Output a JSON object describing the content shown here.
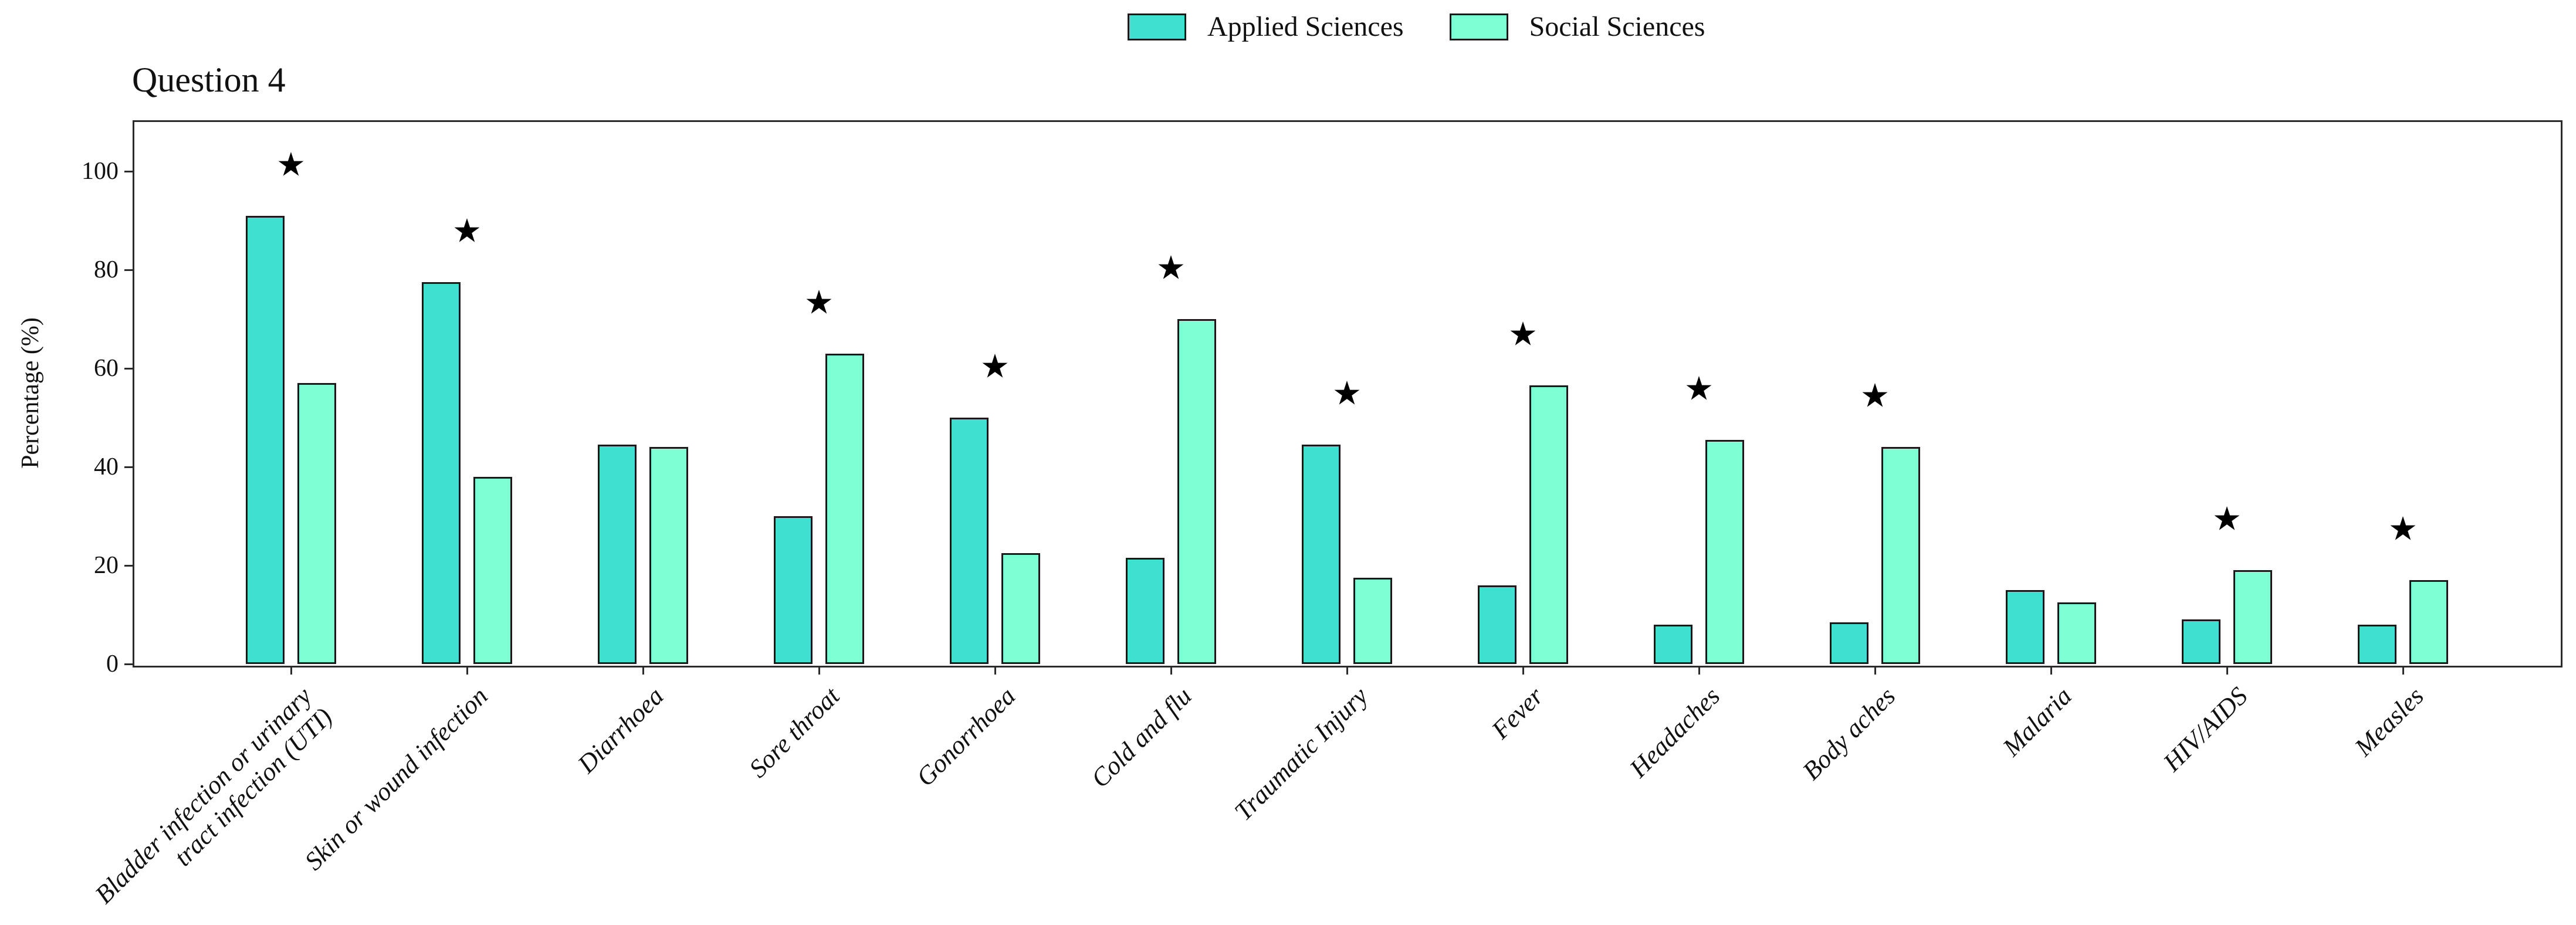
{
  "title": "Question 4",
  "legend": {
    "items": [
      {
        "label": "Applied Sciences",
        "color": "#40E0D0"
      },
      {
        "label": "Social Sciences",
        "color": "#7FFFD4"
      }
    ]
  },
  "y_axis": {
    "label": "Percentage (%)",
    "tick_labels": [
      "0",
      "20",
      "40",
      "60",
      "80",
      "100"
    ]
  },
  "chart_data": {
    "type": "bar",
    "title": "Question 4",
    "xlabel": "",
    "ylabel": "Percentage (%)",
    "ylim": [
      0,
      110
    ],
    "yticks": [
      0,
      20,
      40,
      60,
      80,
      100
    ],
    "grid": false,
    "legend_position": "top-center-outside",
    "bar_edge_color": "#1a1a1a",
    "axis_color": "#2b2b2b",
    "categories": [
      "Bladder infection or urinary\ntract infection (UTI)",
      "Skin or wound infection",
      "Diarrhoea",
      "Sore throat",
      "Gonorrhoea",
      "Cold and flu",
      "Traumatic Injury",
      "Fever",
      "Headaches",
      "Body aches",
      "Malaria",
      "HIV/AIDS",
      "Measles"
    ],
    "series": [
      {
        "name": "Applied Sciences",
        "color": "#40E0D0",
        "values": [
          91,
          77.5,
          44.5,
          30,
          50,
          21.5,
          44.5,
          16,
          8,
          8.5,
          15,
          9,
          8
        ]
      },
      {
        "name": "Social Sciences",
        "color": "#7FFFD4",
        "values": [
          57,
          38,
          44,
          63,
          22.5,
          70,
          17.5,
          56.5,
          45.5,
          44,
          12.5,
          19,
          17
        ]
      }
    ],
    "significance_stars": {
      "symbol": "★",
      "per_category": [
        true,
        true,
        false,
        true,
        true,
        true,
        true,
        true,
        true,
        true,
        false,
        true,
        true
      ],
      "offset_above_tallest_bar": 10
    }
  }
}
